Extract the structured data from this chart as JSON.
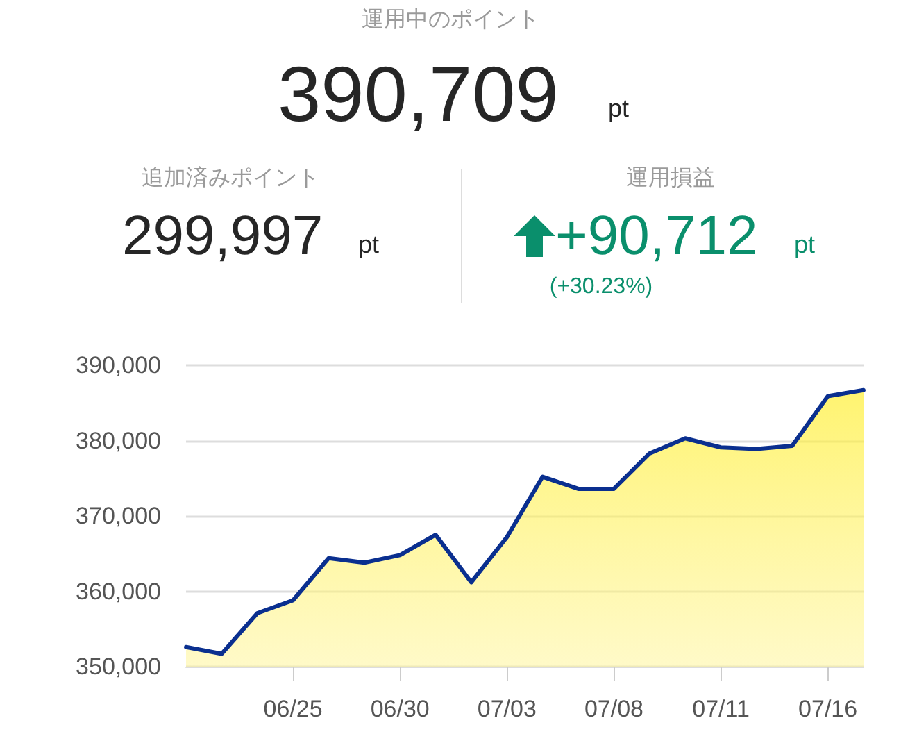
{
  "chart_data": {
    "type": "area",
    "annotations": [
      "運用中のポイント",
      "390,709",
      "pt",
      "追加済みポイント",
      "299,997",
      "pt",
      "運用損益",
      "+90,712",
      "pt",
      "(+30.23%)"
    ],
    "categories": [
      null,
      null,
      null,
      "06/25",
      null,
      null,
      "06/30",
      null,
      null,
      "07/03",
      null,
      null,
      "07/08",
      null,
      null,
      "07/11",
      null,
      null,
      "07/16",
      null
    ],
    "series": [
      {
        "color": "#0a2f8f",
        "values": [
          352600,
          351700,
          357100,
          358800,
          364400,
          363800,
          364800,
          367500,
          361200,
          367200,
          375200,
          373600,
          373600,
          378300,
          380300,
          379100,
          378900,
          379300,
          385900,
          386700
        ]
      }
    ],
    "ylim": [
      350000,
      390000
    ],
    "yticks": [
      {
        "value": 350000,
        "label": "350,000"
      },
      {
        "value": 360000,
        "label": "360,000"
      },
      {
        "value": 370000,
        "label": "370,000"
      },
      {
        "value": 380000,
        "label": "380,000"
      },
      {
        "value": 390000,
        "label": "390,000"
      }
    ],
    "grid": "y",
    "marker": "none",
    "line_style": "solid"
  }
}
